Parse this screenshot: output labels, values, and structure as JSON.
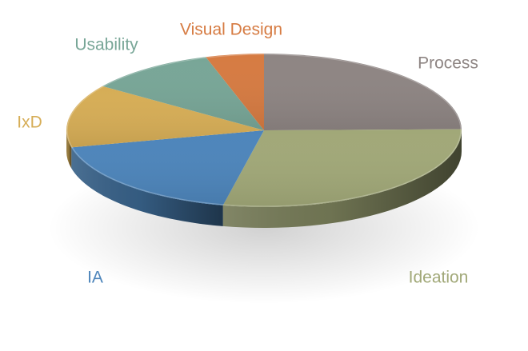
{
  "chart_data": {
    "type": "pie",
    "title": "",
    "legend": "none",
    "three_d": true,
    "slices": [
      {
        "label": "Process",
        "value": 26,
        "color": "#8e8583"
      },
      {
        "label": "Ideation",
        "value": 30,
        "color": "#a1a878"
      },
      {
        "label": "IA",
        "value": 19,
        "color": "#4d85bb"
      },
      {
        "label": "IxD",
        "value": 14,
        "color": "#d6ad56"
      },
      {
        "label": "Usability",
        "value": 11,
        "color": "#78a697"
      },
      {
        "label": "Visual Design",
        "value": 5,
        "color": "#d67b42"
      }
    ]
  }
}
